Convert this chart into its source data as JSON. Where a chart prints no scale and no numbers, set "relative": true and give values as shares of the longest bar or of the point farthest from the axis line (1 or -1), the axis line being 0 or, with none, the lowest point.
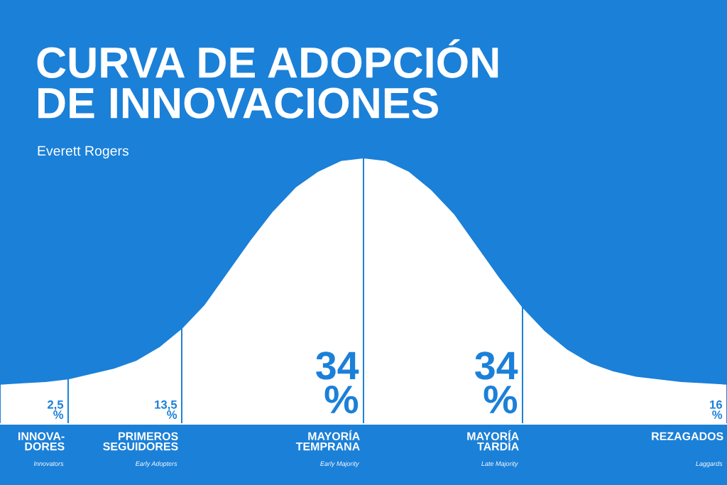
{
  "chart_data": {
    "type": "area",
    "relative": true,
    "title": "CURVA DE ADOPCIÓN\nDE INNOVACIONES",
    "subtitle": "Everett Rogers",
    "categories": [
      null,
      null,
      null,
      null,
      null,
      null,
      null,
      null,
      null,
      null,
      null,
      null,
      null,
      null,
      null,
      null,
      null,
      null,
      null,
      null,
      null,
      null,
      null,
      null,
      null,
      null,
      null,
      null,
      null,
      null,
      null,
      null,
      null
    ],
    "series": [
      {
        "name": "INNOVA-\nDORES",
        "color": "#ffffff",
        "values": [
          0.15,
          0.155,
          0.16,
          0.17,
          null,
          null,
          null,
          null,
          null,
          null,
          null,
          null,
          null,
          null,
          null,
          null,
          null,
          null,
          null,
          null,
          null,
          null,
          null,
          null,
          null,
          null,
          null,
          null,
          null,
          null,
          null,
          null,
          null
        ]
      },
      {
        "name": "PRIMEROS\nSEGUIDORES",
        "color": "#ffffff",
        "values": [
          null,
          null,
          null,
          0.17,
          0.19,
          0.21,
          0.24,
          0.29,
          0.36,
          null,
          null,
          null,
          null,
          null,
          null,
          null,
          null,
          null,
          null,
          null,
          null,
          null,
          null,
          null,
          null,
          null,
          null,
          null,
          null,
          null,
          null,
          null,
          null
        ]
      },
      {
        "name": "MAYORÍA\nTEMPRANA",
        "color": "#ffffff",
        "values": [
          null,
          null,
          null,
          null,
          null,
          null,
          null,
          null,
          0.36,
          0.45,
          0.57,
          0.69,
          0.8,
          0.89,
          0.95,
          0.99,
          1.0,
          null,
          null,
          null,
          null,
          null,
          null,
          null,
          null,
          null,
          null,
          null,
          null,
          null,
          null,
          null,
          null
        ]
      },
      {
        "name": "MAYORÍA\nTARDÍA",
        "color": "#ffffff",
        "values": [
          null,
          null,
          null,
          null,
          null,
          null,
          null,
          null,
          null,
          null,
          null,
          null,
          null,
          null,
          null,
          null,
          1.0,
          0.99,
          0.95,
          0.88,
          0.79,
          0.67,
          0.55,
          0.44,
          null,
          null,
          null,
          null,
          null,
          null,
          null,
          null,
          null
        ]
      },
      {
        "name": "REZAGADOS",
        "color": "#ffffff",
        "values": [
          null,
          null,
          null,
          null,
          null,
          null,
          null,
          null,
          null,
          null,
          null,
          null,
          null,
          null,
          null,
          null,
          null,
          null,
          null,
          null,
          null,
          null,
          null,
          0.44,
          0.35,
          0.28,
          0.23,
          0.2,
          0.18,
          0.17,
          0.16,
          0.155,
          0.15
        ]
      }
    ],
    "annotations": [
      "2,5\n%",
      "13,5\n%",
      "34\n%",
      "34\n%",
      "16\n%",
      "Innovators",
      "Early Adopters",
      "Early Majority",
      "Late Majority",
      "Laggards"
    ],
    "legend": false
  }
}
